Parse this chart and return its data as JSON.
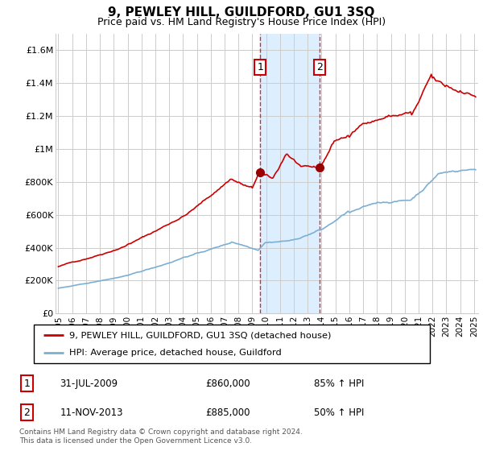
{
  "title": "9, PEWLEY HILL, GUILDFORD, GU1 3SQ",
  "subtitle": "Price paid vs. HM Land Registry's House Price Index (HPI)",
  "property_label": "9, PEWLEY HILL, GUILDFORD, GU1 3SQ (detached house)",
  "hpi_label": "HPI: Average price, detached house, Guildford",
  "transaction1": {
    "date": "31-JUL-2009",
    "price": 860000,
    "hpi_pct": "85% ↑ HPI",
    "label": "1"
  },
  "transaction2": {
    "date": "11-NOV-2013",
    "price": 885000,
    "hpi_pct": "50% ↑ HPI",
    "label": "2"
  },
  "transaction1_year": 2009.58,
  "transaction2_year": 2013.87,
  "ylim": [
    0,
    1700000
  ],
  "xlim_start": 1994.8,
  "xlim_end": 2025.3,
  "yticks": [
    0,
    200000,
    400000,
    600000,
    800000,
    1000000,
    1200000,
    1400000,
    1600000
  ],
  "ytick_labels": [
    "£0",
    "£200K",
    "£400K",
    "£600K",
    "£800K",
    "£1M",
    "£1.2M",
    "£1.4M",
    "£1.6M"
  ],
  "xtick_years": [
    1995,
    1996,
    1997,
    1998,
    1999,
    2000,
    2001,
    2002,
    2003,
    2004,
    2005,
    2006,
    2007,
    2008,
    2009,
    2010,
    2011,
    2012,
    2013,
    2014,
    2015,
    2016,
    2017,
    2018,
    2019,
    2020,
    2021,
    2022,
    2023,
    2024,
    2025
  ],
  "property_color": "#cc0000",
  "hpi_color": "#7bafd4",
  "shade_color": "#ddeeff",
  "grid_color": "#cccccc",
  "footnote": "Contains HM Land Registry data © Crown copyright and database right 2024.\nThis data is licensed under the Open Government Licence v3.0."
}
